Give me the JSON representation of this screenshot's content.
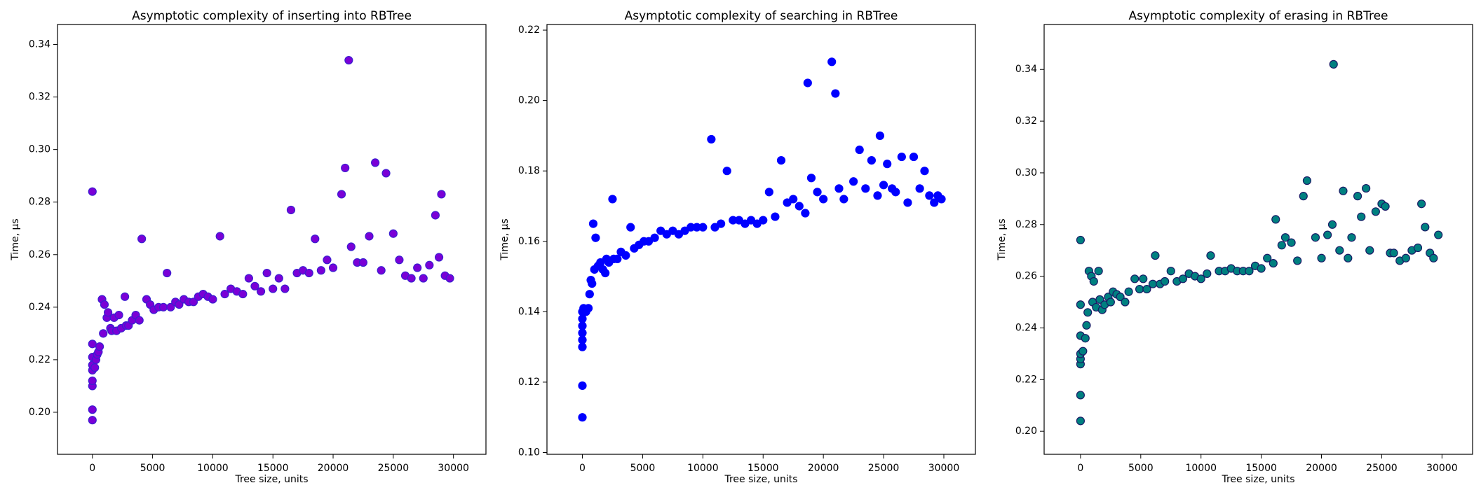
{
  "chart_data": [
    {
      "type": "scatter",
      "title": "Asymptotic complexity of inserting into RBTree",
      "x_label": "Tree size, units",
      "y_label": "Time, μs",
      "color": "#7a00d6",
      "edgecolor": "#3a1fd0",
      "xlim": [
        -2900,
        32700
      ],
      "ylim": [
        0.184,
        0.3476
      ],
      "xticks": [
        0,
        5000,
        10000,
        15000,
        20000,
        25000,
        30000
      ],
      "yticks": [
        {
          "value": 0.2,
          "label": "0.20"
        },
        0.22,
        0.24,
        0.26,
        0.28,
        {
          "value": 0.3,
          "label": "0.30"
        },
        0.32,
        0.34
      ],
      "x": [
        0,
        0,
        0,
        0,
        0,
        0,
        0,
        0,
        0,
        200,
        300,
        400,
        500,
        600,
        800,
        900,
        1000,
        1200,
        1300,
        1500,
        1600,
        1800,
        2000,
        2200,
        2400,
        2700,
        2800,
        3000,
        3300,
        3600,
        3900,
        4100,
        4500,
        4800,
        5100,
        5500,
        5900,
        6200,
        6500,
        6900,
        7200,
        7600,
        8000,
        8400,
        8800,
        9200,
        9600,
        10000,
        10600,
        11000,
        11500,
        12000,
        12500,
        13000,
        13500,
        14000,
        14500,
        15000,
        15500,
        16000,
        16500,
        17000,
        17500,
        18000,
        18500,
        19000,
        19500,
        20000,
        20700,
        21000,
        21300,
        21500,
        22000,
        22500,
        23000,
        23500,
        24000,
        24400,
        25000,
        25500,
        26000,
        26500,
        27000,
        27500,
        28000,
        28500,
        28800,
        29000,
        29300,
        29700
      ],
      "values": [
        0.284,
        0.197,
        0.201,
        0.21,
        0.212,
        0.216,
        0.218,
        0.221,
        0.226,
        0.217,
        0.22,
        0.222,
        0.223,
        0.225,
        0.243,
        0.23,
        0.241,
        0.236,
        0.238,
        0.232,
        0.231,
        0.236,
        0.231,
        0.237,
        0.232,
        0.244,
        0.233,
        0.233,
        0.235,
        0.237,
        0.235,
        0.266,
        0.243,
        0.241,
        0.239,
        0.24,
        0.24,
        0.253,
        0.24,
        0.242,
        0.241,
        0.243,
        0.242,
        0.242,
        0.244,
        0.245,
        0.244,
        0.243,
        0.267,
        0.245,
        0.247,
        0.246,
        0.245,
        0.251,
        0.248,
        0.246,
        0.253,
        0.247,
        0.251,
        0.247,
        0.277,
        0.253,
        0.254,
        0.253,
        0.266,
        0.254,
        0.258,
        0.255,
        0.283,
        0.293,
        0.334,
        0.263,
        0.257,
        0.257,
        0.267,
        0.295,
        0.254,
        0.291,
        0.268,
        0.258,
        0.252,
        0.251,
        0.255,
        0.251,
        0.256,
        0.275,
        0.259,
        0.283,
        0.252,
        0.251
      ]
    },
    {
      "type": "scatter",
      "title": "Asymptotic complexity of searching in RBTree",
      "x_label": "Tree size, units",
      "y_label": "Time, μs",
      "color": "#0000ff",
      "edgecolor": "#0000ff",
      "xlim": [
        -2940,
        32620
      ],
      "ylim": [
        0.0995,
        0.2216
      ],
      "xticks": [
        0,
        5000,
        10000,
        15000,
        20000,
        25000,
        30000
      ],
      "yticks": [
        {
          "value": 0.1,
          "label": "0.10"
        },
        0.12,
        0.14,
        0.16,
        0.18,
        {
          "value": 0.2,
          "label": "0.20"
        },
        0.22
      ],
      "x": [
        0,
        0,
        0,
        0,
        0,
        0,
        0,
        0,
        100,
        300,
        500,
        600,
        700,
        800,
        900,
        1000,
        1100,
        1300,
        1500,
        1700,
        1900,
        2000,
        2200,
        2500,
        2600,
        2900,
        3200,
        3600,
        4000,
        4300,
        4700,
        5100,
        5500,
        6000,
        6500,
        7000,
        7500,
        8000,
        8500,
        9000,
        9500,
        10000,
        10700,
        11000,
        11500,
        12000,
        12500,
        13000,
        13500,
        14000,
        14500,
        15000,
        15500,
        16000,
        16500,
        17000,
        17500,
        18000,
        18500,
        18700,
        19000,
        19500,
        20000,
        20700,
        21000,
        21300,
        21700,
        22500,
        23000,
        23500,
        24000,
        24500,
        24700,
        25000,
        25300,
        25700,
        26000,
        26500,
        27000,
        27500,
        28000,
        28400,
        28800,
        29200,
        29500,
        29800
      ],
      "values": [
        0.11,
        0.119,
        0.13,
        0.132,
        0.134,
        0.136,
        0.138,
        0.14,
        0.141,
        0.14,
        0.141,
        0.145,
        0.149,
        0.148,
        0.165,
        0.152,
        0.161,
        0.153,
        0.154,
        0.152,
        0.151,
        0.155,
        0.154,
        0.172,
        0.155,
        0.155,
        0.157,
        0.156,
        0.164,
        0.158,
        0.159,
        0.16,
        0.16,
        0.161,
        0.163,
        0.162,
        0.163,
        0.162,
        0.163,
        0.164,
        0.164,
        0.164,
        0.189,
        0.164,
        0.165,
        0.18,
        0.166,
        0.166,
        0.165,
        0.166,
        0.165,
        0.166,
        0.174,
        0.167,
        0.183,
        0.171,
        0.172,
        0.17,
        0.168,
        0.205,
        0.178,
        0.174,
        0.172,
        0.211,
        0.202,
        0.175,
        0.172,
        0.177,
        0.186,
        0.175,
        0.183,
        0.173,
        0.19,
        0.176,
        0.182,
        0.175,
        0.174,
        0.184,
        0.171,
        0.184,
        0.175,
        0.18,
        0.173,
        0.171,
        0.173,
        0.172
      ]
    },
    {
      "type": "scatter",
      "title": "Asymptotic complexity of erasing in RBTree",
      "x_label": "Tree size, units",
      "y_label": "Time, μs",
      "color": "#008080",
      "edgecolor": "#1a1a66",
      "xlim": [
        -3020,
        32540
      ],
      "ylim": [
        0.1911,
        0.3574
      ],
      "xticks": [
        0,
        5000,
        10000,
        15000,
        20000,
        25000,
        30000
      ],
      "yticks": [
        {
          "value": 0.2,
          "label": "0.20"
        },
        0.22,
        0.24,
        0.26,
        0.28,
        {
          "value": 0.3,
          "label": "0.30"
        },
        0.32,
        0.34
      ],
      "x": [
        0,
        0,
        0,
        0,
        0,
        0,
        0,
        0,
        200,
        400,
        500,
        600,
        700,
        900,
        1000,
        1100,
        1300,
        1500,
        1600,
        1800,
        2000,
        2300,
        2500,
        2700,
        3000,
        3300,
        3700,
        4000,
        4500,
        4900,
        5200,
        5500,
        6000,
        6200,
        6600,
        7000,
        7500,
        8000,
        8500,
        9000,
        9500,
        10000,
        10500,
        10800,
        11500,
        12000,
        12500,
        13000,
        13500,
        14000,
        14500,
        15000,
        15500,
        16000,
        16200,
        16700,
        17000,
        17500,
        18000,
        18500,
        18800,
        19500,
        20000,
        20500,
        20900,
        21000,
        21500,
        21800,
        22200,
        22500,
        23000,
        23300,
        23700,
        24000,
        24500,
        25000,
        25300,
        25700,
        26000,
        26500,
        27000,
        27500,
        28000,
        28300,
        28600,
        29000,
        29300,
        29700
      ],
      "values": [
        0.204,
        0.214,
        0.226,
        0.228,
        0.23,
        0.237,
        0.249,
        0.274,
        0.231,
        0.236,
        0.241,
        0.246,
        0.262,
        0.26,
        0.25,
        0.258,
        0.248,
        0.262,
        0.251,
        0.247,
        0.249,
        0.252,
        0.25,
        0.254,
        0.253,
        0.252,
        0.25,
        0.254,
        0.259,
        0.255,
        0.259,
        0.255,
        0.257,
        0.268,
        0.257,
        0.258,
        0.262,
        0.258,
        0.259,
        0.261,
        0.26,
        0.259,
        0.261,
        0.268,
        0.262,
        0.262,
        0.263,
        0.262,
        0.262,
        0.262,
        0.264,
        0.263,
        0.267,
        0.265,
        0.282,
        0.272,
        0.275,
        0.273,
        0.266,
        0.291,
        0.297,
        0.275,
        0.267,
        0.276,
        0.28,
        0.342,
        0.27,
        0.293,
        0.267,
        0.275,
        0.291,
        0.283,
        0.294,
        0.27,
        0.285,
        0.288,
        0.287,
        0.269,
        0.269,
        0.266,
        0.267,
        0.27,
        0.271,
        0.288,
        0.279,
        0.269,
        0.267,
        0.276
      ]
    }
  ]
}
